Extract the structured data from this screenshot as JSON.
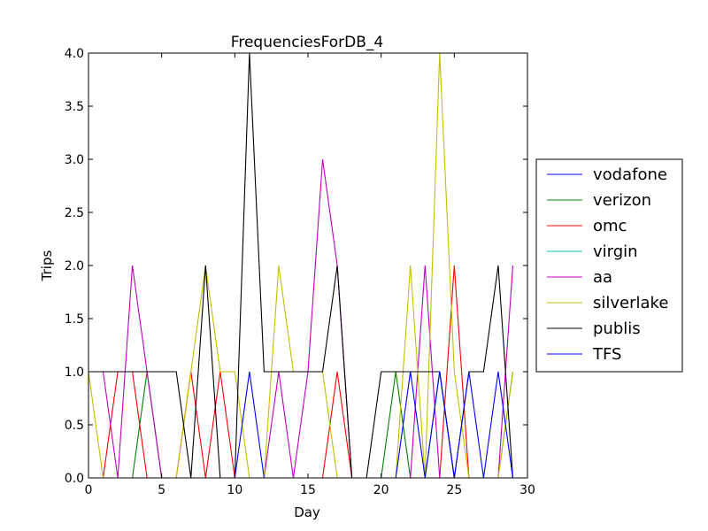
{
  "chart_data": {
    "type": "line",
    "title": "FrequenciesForDB_4",
    "xlabel": "Day",
    "ylabel": "Trips",
    "xlim": [
      0,
      30
    ],
    "ylim": [
      0,
      4
    ],
    "xticks": [
      0,
      5,
      10,
      15,
      20,
      25,
      30
    ],
    "xtick_labels": [
      "0",
      "5",
      "10",
      "15",
      "20",
      "25",
      "30"
    ],
    "yticks": [
      0,
      0.5,
      1,
      1.5,
      2,
      2.5,
      3,
      3.5,
      4
    ],
    "ytick_labels": [
      "0.0",
      "0.5",
      "1.0",
      "1.5",
      "2.0",
      "2.5",
      "3.0",
      "3.5",
      "4.0"
    ],
    "legend_position": "center-right outside",
    "x": [
      0,
      1,
      2,
      3,
      4,
      5,
      6,
      7,
      8,
      9,
      10,
      11,
      12,
      13,
      14,
      15,
      16,
      17,
      18,
      19,
      20,
      21,
      22,
      23,
      24,
      25,
      26,
      27,
      28,
      29
    ],
    "series": [
      {
        "name": "vodafone",
        "color": "#0000ff",
        "values": [
          0,
          0,
          0,
          0,
          0,
          0,
          0,
          0,
          0,
          0,
          0,
          0,
          0,
          0,
          0,
          0,
          0,
          0,
          0,
          0,
          0,
          0,
          0,
          0,
          0,
          0,
          0,
          0,
          0,
          0
        ]
      },
      {
        "name": "verizon",
        "color": "#008000",
        "values": [
          0,
          0,
          0,
          0,
          1,
          0,
          0,
          0,
          0,
          0,
          0,
          0,
          0,
          0,
          0,
          0,
          0,
          0,
          0,
          0,
          0,
          1,
          0,
          0,
          1,
          0,
          0,
          0,
          0,
          1
        ]
      },
      {
        "name": "omc",
        "color": "#ff0000",
        "values": [
          0,
          0,
          1,
          1,
          0,
          0,
          0,
          1,
          0,
          1,
          0,
          0,
          0,
          0,
          0,
          0,
          0,
          1,
          0,
          0,
          0,
          0,
          0,
          0,
          0,
          2,
          0,
          0,
          0,
          0
        ]
      },
      {
        "name": "virgin",
        "color": "#00bfbf",
        "values": [
          0,
          0,
          0,
          0,
          0,
          0,
          0,
          0,
          0,
          0,
          0,
          0,
          0,
          0,
          0,
          0,
          0,
          0,
          0,
          0,
          0,
          0,
          0,
          0,
          0,
          0,
          0,
          0,
          0,
          0
        ]
      },
      {
        "name": "aa",
        "color": "#bf00bf",
        "values": [
          1,
          1,
          0,
          2,
          1,
          0,
          0,
          0,
          0,
          0,
          0,
          0,
          0,
          1,
          0,
          1,
          3,
          2,
          0,
          0,
          0,
          0,
          0,
          2,
          0,
          0,
          0,
          0,
          0,
          2
        ]
      },
      {
        "name": "silverlake",
        "color": "#bfbf00",
        "values": [
          1,
          0,
          0,
          0,
          0,
          0,
          0,
          1,
          2,
          1,
          1,
          0,
          0,
          2,
          1,
          1,
          1,
          0,
          0,
          0,
          0,
          0,
          2,
          0,
          4,
          1,
          0,
          0,
          0,
          1
        ]
      },
      {
        "name": "publis",
        "color": "#000000",
        "values": [
          1,
          1,
          1,
          1,
          1,
          1,
          1,
          0,
          2,
          0,
          0,
          4,
          1,
          1,
          1,
          1,
          1,
          2,
          0,
          0,
          1,
          1,
          1,
          1,
          1,
          0,
          1,
          1,
          2,
          0
        ]
      },
      {
        "name": "TFS",
        "color": "#0000ff",
        "values": [
          0,
          0,
          0,
          0,
          0,
          0,
          0,
          0,
          0,
          0,
          0,
          1,
          0,
          0,
          0,
          0,
          0,
          0,
          0,
          0,
          0,
          0,
          1,
          0,
          1,
          0,
          1,
          0,
          1,
          0
        ]
      }
    ]
  }
}
